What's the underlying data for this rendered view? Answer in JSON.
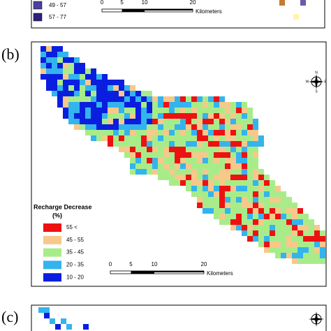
{
  "panel_a": {
    "legend": [
      {
        "label": "49 - 57",
        "color": "#4b3fa0"
      },
      {
        "label": "57 - 77",
        "color": "#2c2080"
      }
    ],
    "scale": {
      "ticks": [
        "0",
        "5",
        "10",
        "20"
      ],
      "unit": "Kilometers"
    }
  },
  "panel_b": {
    "label": "(b)",
    "legend_title": "Recharge Decrease",
    "legend_unit": "(%)",
    "legend": [
      {
        "label": "55 <",
        "color": "#ee1111"
      },
      {
        "label": "45 - 55",
        "color": "#f7c88a"
      },
      {
        "label": "35 - 45",
        "color": "#a8ec8a"
      },
      {
        "label": "20 - 35",
        "color": "#33b4ee"
      },
      {
        "label": "10 - 20",
        "color": "#0a1ee0"
      }
    ],
    "scale": {
      "ticks": [
        "0",
        "5",
        "10",
        "20"
      ],
      "unit": "Kilometers"
    },
    "compass": {
      "n": "N",
      "s": "S",
      "e": "E",
      "w": "W"
    }
  },
  "panel_c": {
    "label": "(c)"
  }
}
